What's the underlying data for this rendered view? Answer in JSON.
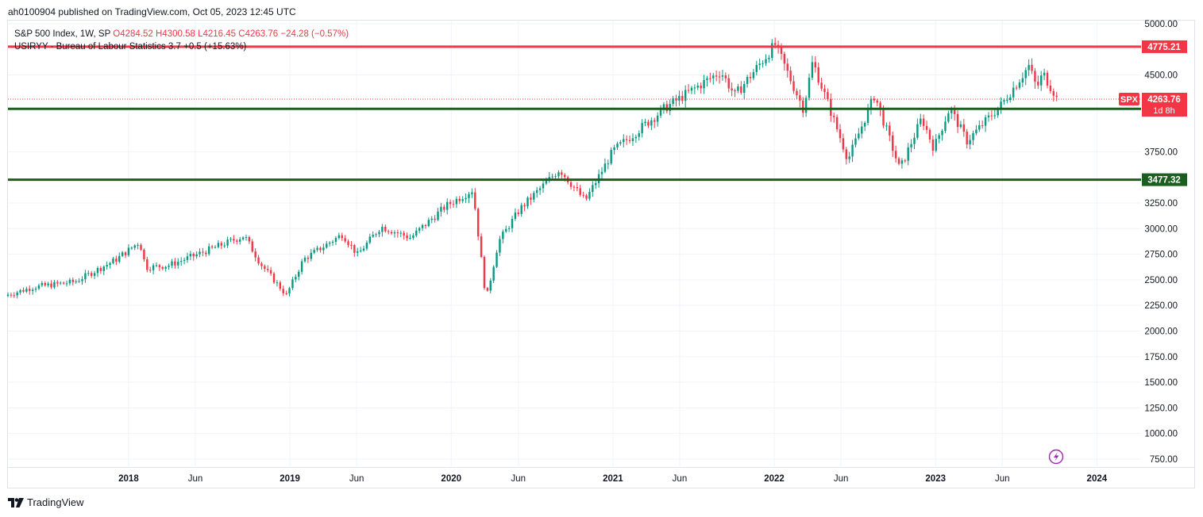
{
  "header": {
    "published": "ah0100904 published on TradingView.com, Oct 05, 2023 12:45 UTC"
  },
  "legend": {
    "symbol": "S&P 500 Index, 1W, SP",
    "o_label": "O",
    "o": "4284.52",
    "h_label": "H",
    "h": "4300.58",
    "l_label": "L",
    "l": "4216.45",
    "c_label": "C",
    "c": "4263.76",
    "change": "−24.28 (−0.57%)",
    "indicator": "USIRYY · Bureau of Labour Statistics",
    "indicator_value": "3.7",
    "indicator_change": "+0.5 (+15.63%)"
  },
  "footer": {
    "brand": "TradingView"
  },
  "colors": {
    "up": "#089981",
    "down": "#f23645",
    "resistance": "#f23645",
    "support": "#1b5e20",
    "grid": "#f0f3fa",
    "axis_text": "#131722",
    "icon": "#9c27b0"
  },
  "chart_data": {
    "type": "candlestick",
    "timeframe": "1W",
    "yaxis": {
      "ticks": [
        750,
        1000,
        1250,
        1500,
        1750,
        2000,
        2250,
        2500,
        2750,
        3000,
        3250,
        3750,
        4500,
        5000
      ],
      "tick_labels": [
        "750.00",
        "1000.00",
        "1250.00",
        "1500.00",
        "1750.00",
        "2000.00",
        "2250.00",
        "2500.00",
        "2750.00",
        "3000.00",
        "3250.00",
        "3750.00",
        "4500.00",
        "5000.00"
      ],
      "range": [
        680,
        5030
      ]
    },
    "xaxis": {
      "range": [
        "2017-04-03",
        "2024-04-10"
      ],
      "tick_labels": [
        {
          "label": "2018",
          "date": "2018-01-01"
        },
        {
          "label": "Jun",
          "date": "2018-06-01"
        },
        {
          "label": "2019",
          "date": "2019-01-01"
        },
        {
          "label": "Jun",
          "date": "2019-06-01"
        },
        {
          "label": "2020",
          "date": "2020-01-01"
        },
        {
          "label": "Jun",
          "date": "2020-06-01"
        },
        {
          "label": "2021",
          "date": "2021-01-01"
        },
        {
          "label": "Jun",
          "date": "2021-06-01"
        },
        {
          "label": "2022",
          "date": "2022-01-01"
        },
        {
          "label": "Jun",
          "date": "2022-06-01"
        },
        {
          "label": "2023",
          "date": "2023-01-01"
        },
        {
          "label": "Jun",
          "date": "2023-06-01"
        },
        {
          "label": "2024",
          "date": "2024-01-01"
        }
      ]
    },
    "horizontal_levels": [
      {
        "value": 4775.21,
        "label": "4775.21",
        "role": "resistance"
      },
      {
        "value": 4168.51,
        "label": "4168.51",
        "role": "support"
      },
      {
        "value": 3477.32,
        "label": "3477.32",
        "role": "support"
      }
    ],
    "last_price": {
      "value": 4263.76,
      "symbol": "SPX",
      "label": "4263.76",
      "countdown": "1d 8h"
    },
    "weekly_closes": [
      {
        "date": "2017-04-03",
        "close": 2355
      },
      {
        "date": "2017-06-01",
        "close": 2430
      },
      {
        "date": "2017-09-01",
        "close": 2480
      },
      {
        "date": "2017-12-01",
        "close": 2690
      },
      {
        "date": "2018-01-26",
        "close": 2872
      },
      {
        "date": "2018-02-09",
        "close": 2620
      },
      {
        "date": "2018-04-01",
        "close": 2640
      },
      {
        "date": "2018-06-01",
        "close": 2740
      },
      {
        "date": "2018-09-20",
        "close": 2930
      },
      {
        "date": "2018-10-26",
        "close": 2660
      },
      {
        "date": "2018-12-24",
        "close": 2351
      },
      {
        "date": "2019-02-01",
        "close": 2700
      },
      {
        "date": "2019-04-30",
        "close": 2945
      },
      {
        "date": "2019-06-03",
        "close": 2745
      },
      {
        "date": "2019-07-26",
        "close": 3020
      },
      {
        "date": "2019-10-01",
        "close": 2910
      },
      {
        "date": "2019-12-20",
        "close": 3220
      },
      {
        "date": "2020-02-19",
        "close": 3380
      },
      {
        "date": "2020-03-20",
        "close": 2305
      },
      {
        "date": "2020-04-17",
        "close": 2874
      },
      {
        "date": "2020-06-05",
        "close": 3193
      },
      {
        "date": "2020-09-02",
        "close": 3580
      },
      {
        "date": "2020-10-30",
        "close": 3270
      },
      {
        "date": "2021-01-01",
        "close": 3756
      },
      {
        "date": "2021-04-30",
        "close": 4181
      },
      {
        "date": "2021-09-02",
        "close": 4535
      },
      {
        "date": "2021-10-04",
        "close": 4300
      },
      {
        "date": "2022-01-03",
        "close": 4796
      },
      {
        "date": "2022-03-08",
        "close": 4170
      },
      {
        "date": "2022-03-29",
        "close": 4631
      },
      {
        "date": "2022-06-17",
        "close": 3674
      },
      {
        "date": "2022-08-16",
        "close": 4305
      },
      {
        "date": "2022-10-12",
        "close": 3577
      },
      {
        "date": "2022-12-01",
        "close": 4080
      },
      {
        "date": "2022-12-28",
        "close": 3783
      },
      {
        "date": "2023-02-02",
        "close": 4179
      },
      {
        "date": "2023-03-13",
        "close": 3855
      },
      {
        "date": "2023-06-01",
        "close": 4220
      },
      {
        "date": "2023-07-31",
        "close": 4588
      },
      {
        "date": "2023-08-18",
        "close": 4370
      },
      {
        "date": "2023-09-01",
        "close": 4515
      },
      {
        "date": "2023-10-05",
        "close": 4264
      }
    ]
  }
}
